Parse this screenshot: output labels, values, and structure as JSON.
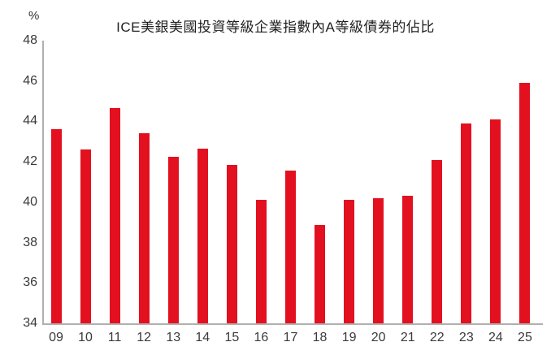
{
  "chart_data": {
    "type": "bar",
    "title": "ICE美銀美國投資等級企業指數內A等級債券的佔比",
    "unit_label": "%",
    "categories": [
      "09",
      "10",
      "11",
      "12",
      "13",
      "14",
      "15",
      "16",
      "17",
      "18",
      "19",
      "20",
      "21",
      "22",
      "23",
      "24",
      "25"
    ],
    "values": [
      43.6,
      42.6,
      44.65,
      43.4,
      42.25,
      42.65,
      41.85,
      40.1,
      41.55,
      38.85,
      40.1,
      40.2,
      40.3,
      42.1,
      43.9,
      44.1,
      45.9
    ],
    "ylim": [
      34,
      48
    ],
    "yticks": [
      48,
      46,
      44,
      42,
      40,
      38,
      36,
      34
    ],
    "xlabel": "",
    "ylabel": "%",
    "grid": false,
    "legend": "none",
    "bar_color": "#e3101f",
    "axis_color": "#b0b0b0",
    "label_color": "#3a3a3a"
  }
}
